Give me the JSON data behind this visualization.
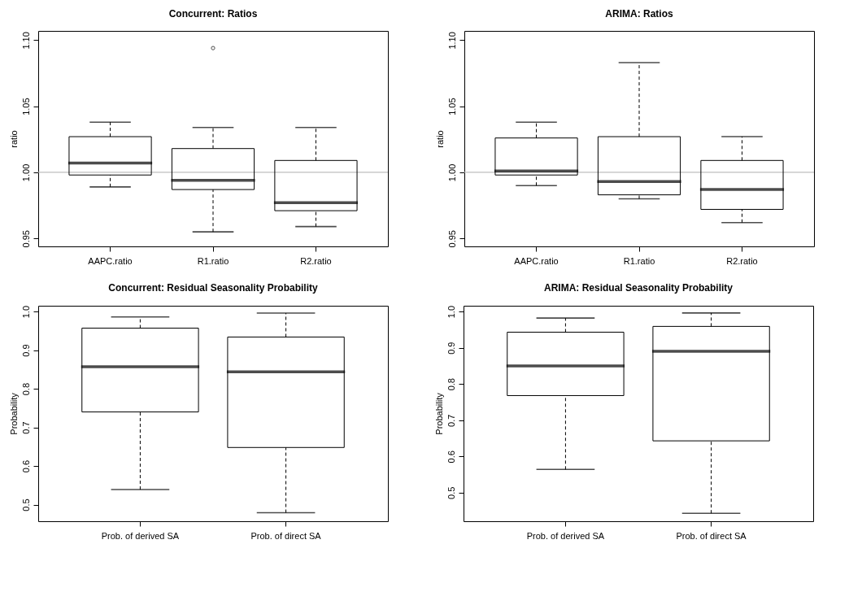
{
  "chart_data": [
    {
      "type": "box",
      "title": "Concurrent: Ratios",
      "ylabel": "ratio",
      "categories": [
        "AAPC.ratio",
        "R1.ratio",
        "R2.ratio"
      ],
      "boxes": [
        {
          "low": 0.989,
          "q1": 0.998,
          "median": 1.007,
          "q3": 1.027,
          "high": 1.038
        },
        {
          "low": 0.955,
          "q1": 0.987,
          "median": 0.994,
          "q3": 1.018,
          "high": 1.034,
          "outliers": [
            1.094
          ]
        },
        {
          "low": 0.959,
          "q1": 0.971,
          "median": 0.977,
          "q3": 1.009,
          "high": 1.034
        }
      ],
      "ylim": [
        0.944,
        1.107
      ],
      "yticks": [
        {
          "value": 0.95,
          "label": "0.95"
        },
        {
          "value": 1.0,
          "label": "1.00"
        },
        {
          "value": 1.05,
          "label": "1.05"
        },
        {
          "value": 1.1,
          "label": "1.10"
        }
      ],
      "ref_lines": [
        {
          "axis": "y",
          "value": 1.0,
          "color": "#bebebe"
        }
      ]
    },
    {
      "type": "box",
      "title": "ARIMA: Ratios",
      "ylabel": "ratio",
      "categories": [
        "AAPC.ratio",
        "R1.ratio",
        "R2.ratio"
      ],
      "boxes": [
        {
          "low": 0.99,
          "q1": 0.998,
          "median": 1.001,
          "q3": 1.026,
          "high": 1.038
        },
        {
          "low": 0.98,
          "q1": 0.983,
          "median": 0.993,
          "q3": 1.027,
          "high": 1.083
        },
        {
          "low": 0.962,
          "q1": 0.972,
          "median": 0.987,
          "q3": 1.009,
          "high": 1.027
        }
      ],
      "ylim": [
        0.944,
        1.107
      ],
      "yticks": [
        {
          "value": 0.95,
          "label": "0.95"
        },
        {
          "value": 1.0,
          "label": "1.00"
        },
        {
          "value": 1.05,
          "label": "1.05"
        },
        {
          "value": 1.1,
          "label": "1.10"
        }
      ],
      "ref_lines": [
        {
          "axis": "y",
          "value": 1.0,
          "color": "#bebebe"
        }
      ]
    },
    {
      "type": "box",
      "title": "Concurrent: Residual Seasonality Probability",
      "ylabel": "Probability",
      "categories": [
        "Prob. of derived SA",
        "Prob. of direct SA"
      ],
      "boxes": [
        {
          "low": 0.539,
          "q1": 0.74,
          "median": 0.857,
          "q3": 0.957,
          "high": 0.986
        },
        {
          "low": 0.479,
          "q1": 0.648,
          "median": 0.844,
          "q3": 0.934,
          "high": 0.996
        }
      ],
      "ylim": [
        0.457,
        1.015
      ],
      "yticks": [
        {
          "value": 0.5,
          "label": "0.5"
        },
        {
          "value": 0.6,
          "label": "0.6"
        },
        {
          "value": 0.7,
          "label": "0.7"
        },
        {
          "value": 0.8,
          "label": "0.8"
        },
        {
          "value": 0.9,
          "label": "0.9"
        },
        {
          "value": 1.0,
          "label": "1.0"
        }
      ]
    },
    {
      "type": "box",
      "title": "ARIMA: Residual Seasonality Probability",
      "ylabel": "Probability",
      "categories": [
        "Prob. of derived SA",
        "Prob. of direct SA"
      ],
      "boxes": [
        {
          "low": 0.564,
          "q1": 0.768,
          "median": 0.85,
          "q3": 0.943,
          "high": 0.982
        },
        {
          "low": 0.443,
          "q1": 0.643,
          "median": 0.89,
          "q3": 0.959,
          "high": 0.996
        }
      ],
      "ylim": [
        0.421,
        1.016
      ],
      "yticks": [
        {
          "value": 0.5,
          "label": "0.5"
        },
        {
          "value": 0.6,
          "label": "0.6"
        },
        {
          "value": 0.7,
          "label": "0.7"
        },
        {
          "value": 0.8,
          "label": "0.8"
        },
        {
          "value": 0.9,
          "label": "0.9"
        },
        {
          "value": 1.0,
          "label": "1.0"
        }
      ]
    }
  ]
}
